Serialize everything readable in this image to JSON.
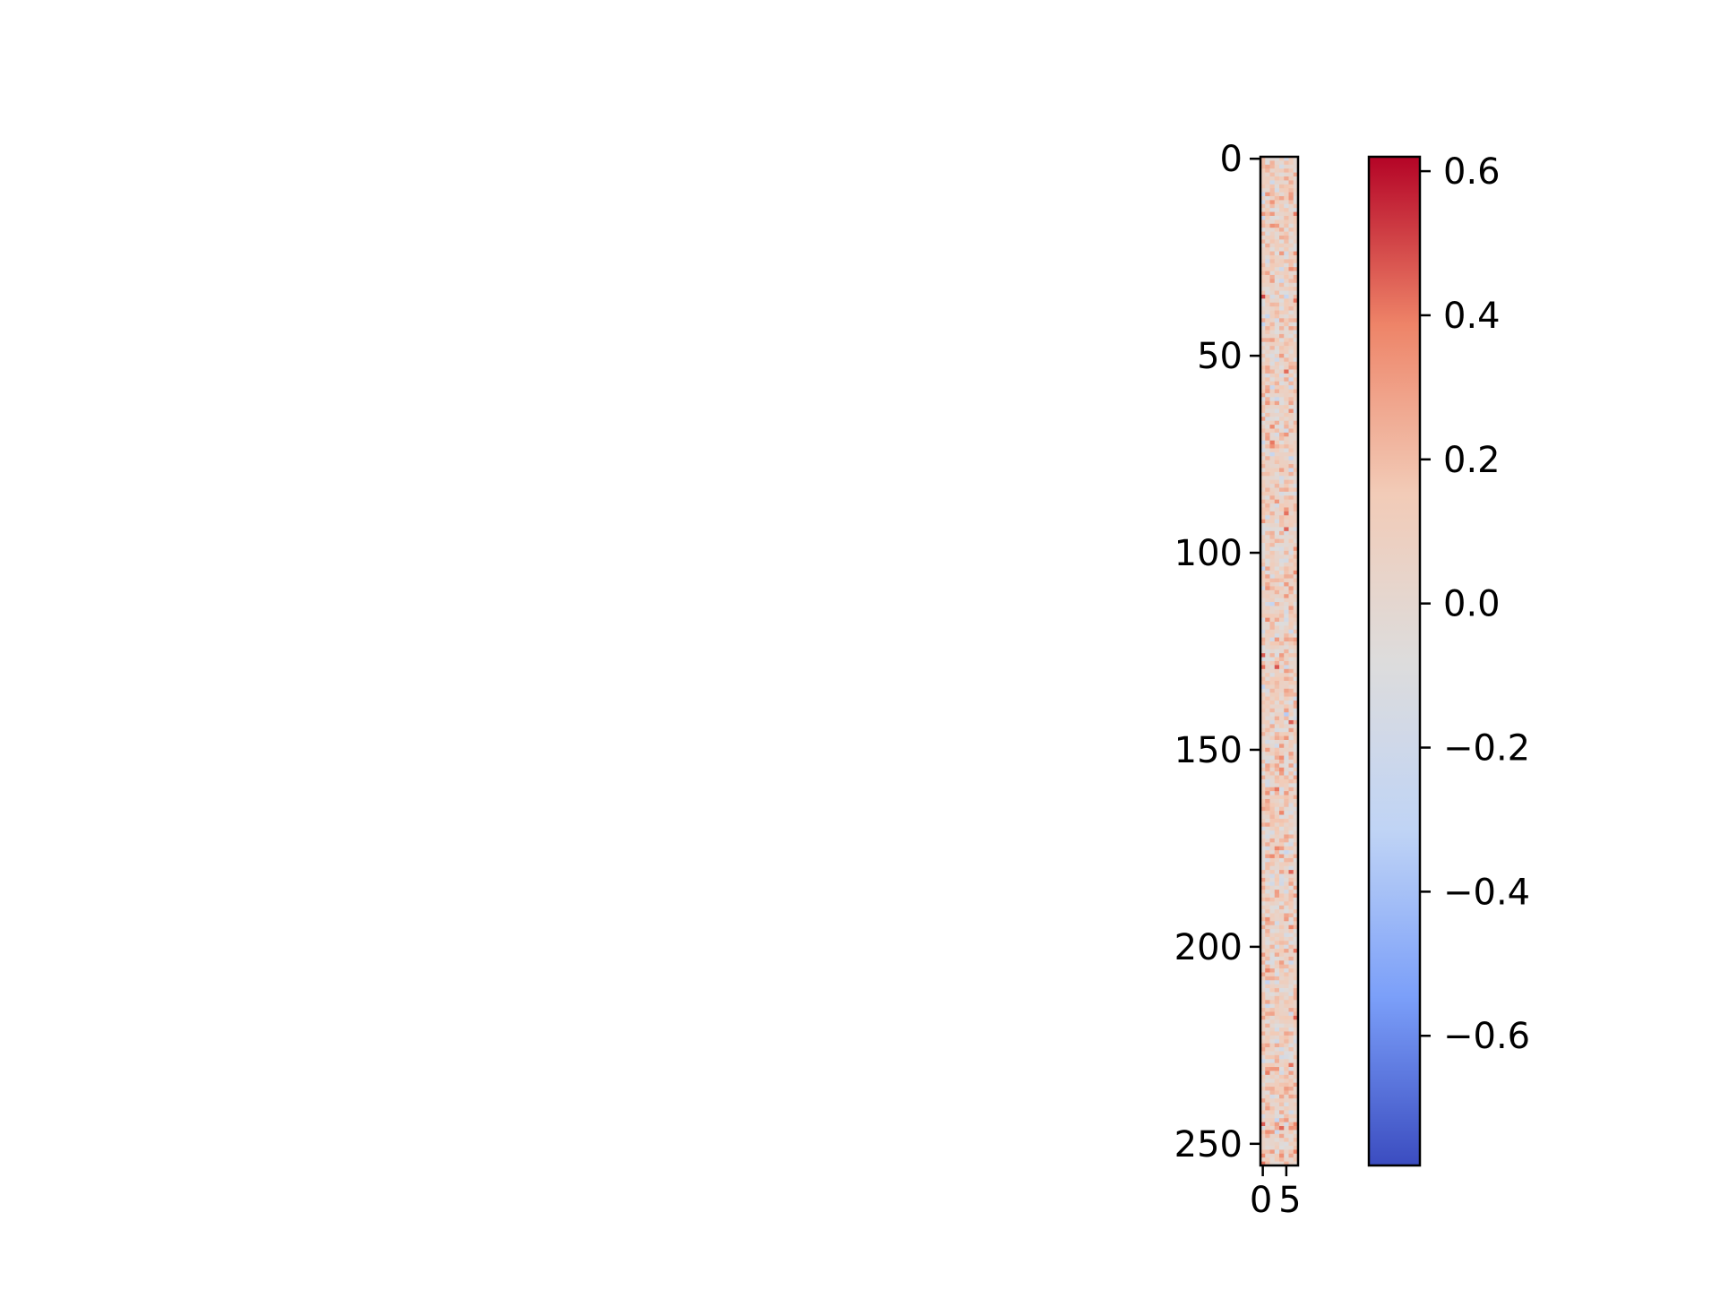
{
  "chart_data": {
    "type": "heatmap",
    "title": "",
    "xlabel": "",
    "ylabel": "",
    "shape": {
      "rows": 256,
      "cols": 8
    },
    "x_ticks": [
      {
        "value": 0,
        "label": "0"
      },
      {
        "value": 5,
        "label": "5"
      }
    ],
    "y_ticks": [
      {
        "value": 0,
        "label": "0"
      },
      {
        "value": 50,
        "label": "50"
      },
      {
        "value": 100,
        "label": "100"
      },
      {
        "value": 150,
        "label": "150"
      },
      {
        "value": 200,
        "label": "200"
      },
      {
        "value": 250,
        "label": "250"
      }
    ],
    "colormap": "coolwarm",
    "colormap_stops": [
      "#3b4cc0",
      "#7b9ff9",
      "#c0d4f5",
      "#dddcdc",
      "#f2cbb7",
      "#ee8468",
      "#b40426"
    ],
    "value_range": [
      -0.78,
      0.62
    ],
    "colorbar": {
      "ticks": [
        {
          "value": 0.6,
          "label": "0.6"
        },
        {
          "value": 0.4,
          "label": "0.4"
        },
        {
          "value": 0.2,
          "label": "0.2"
        },
        {
          "value": 0.0,
          "label": "0.0"
        },
        {
          "value": -0.2,
          "label": "−0.2"
        },
        {
          "value": -0.4,
          "label": "−0.4"
        },
        {
          "value": -0.6,
          "label": "−0.6"
        }
      ]
    },
    "value_distribution": {
      "mean": 0.08,
      "std": 0.13
    }
  }
}
